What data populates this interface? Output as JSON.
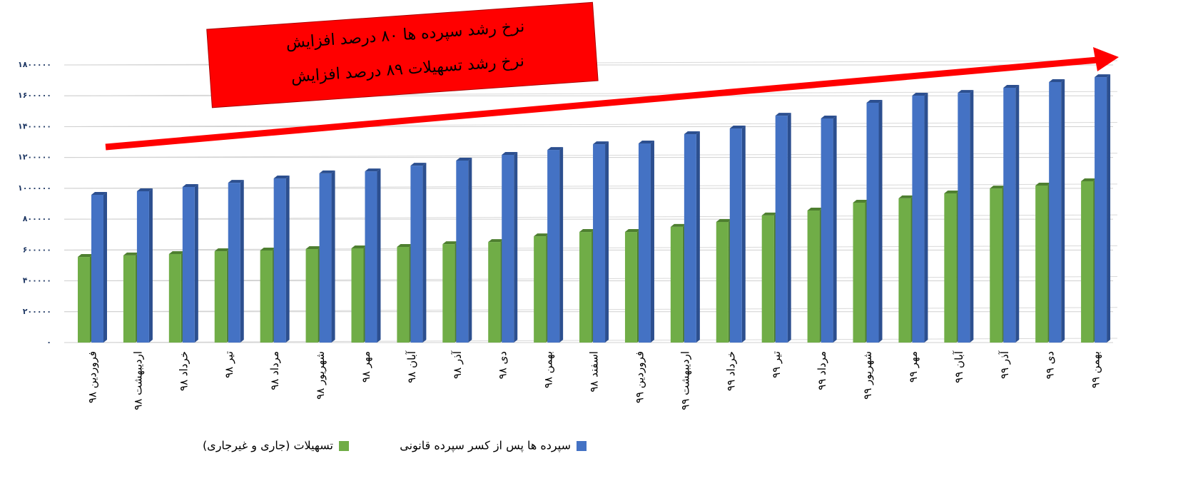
{
  "chart_data": {
    "type": "bar",
    "annotations": [
      "نرخ رشد سپرده ها ۸۰ درصد افزایش",
      "نرخ رشد تسهیلات ۸۹ درصد افزایش"
    ],
    "categories": [
      "فروردین ۹۸",
      "اردیبهشت ۹۸",
      "خرداد ۹۸",
      "تیر ۹۸",
      "مرداد ۹۸",
      "شهریور ۹۸",
      "مهر ۹۸",
      "آبان ۹۸",
      "آذر ۹۸",
      "دی ۹۸",
      "بهمن ۹۸",
      "اسفند ۹۸",
      "فروردین ۹۹",
      "اردیبهشت ۹۹",
      "خرداد ۹۹",
      "تیر ۹۹",
      "مرداد ۹۹",
      "شهریور ۹۹",
      "مهر ۹۹",
      "آبان ۹۹",
      "آذر ۹۹",
      "دی ۹۹",
      "بهمن ۹۹"
    ],
    "series": [
      {
        "name": "تسهیلات (جاری و غیرجاری)",
        "color": "#70ad47",
        "side": "#4e7f30",
        "values": [
          555000,
          565000,
          574000,
          592000,
          597000,
          606000,
          611000,
          620000,
          638000,
          652000,
          689000,
          717000,
          717000,
          750000,
          782000,
          824000,
          856000,
          907000,
          935000,
          967000,
          999000,
          1018000,
          1046000
        ]
      },
      {
        "name": "سپرده ها پس از کسر سپرده قانونی",
        "color": "#4472c4",
        "side": "#2c4f8f",
        "values": [
          958000,
          981000,
          1009000,
          1036000,
          1064000,
          1097000,
          1110000,
          1147000,
          1180000,
          1217000,
          1249000,
          1286000,
          1291000,
          1351000,
          1388000,
          1471000,
          1453000,
          1555000,
          1601000,
          1619000,
          1652000,
          1689000,
          1721000
        ]
      }
    ],
    "ylim": [
      0,
      1800000
    ],
    "yticks": [
      {
        "value": 0,
        "label": "۰"
      },
      {
        "value": 200000,
        "label": "۲۰۰۰۰۰"
      },
      {
        "value": 400000,
        "label": "۴۰۰۰۰۰"
      },
      {
        "value": 600000,
        "label": "۶۰۰۰۰۰"
      },
      {
        "value": 800000,
        "label": "۸۰۰۰۰۰"
      },
      {
        "value": 1000000,
        "label": "۱۰۰۰۰۰۰"
      },
      {
        "value": 1200000,
        "label": "۱۲۰۰۰۰۰"
      },
      {
        "value": 1400000,
        "label": "۱۴۰۰۰۰۰"
      },
      {
        "value": 1600000,
        "label": "۱۶۰۰۰۰۰"
      },
      {
        "value": 1800000,
        "label": "۱۸۰۰۰۰۰"
      }
    ],
    "grid": true
  }
}
